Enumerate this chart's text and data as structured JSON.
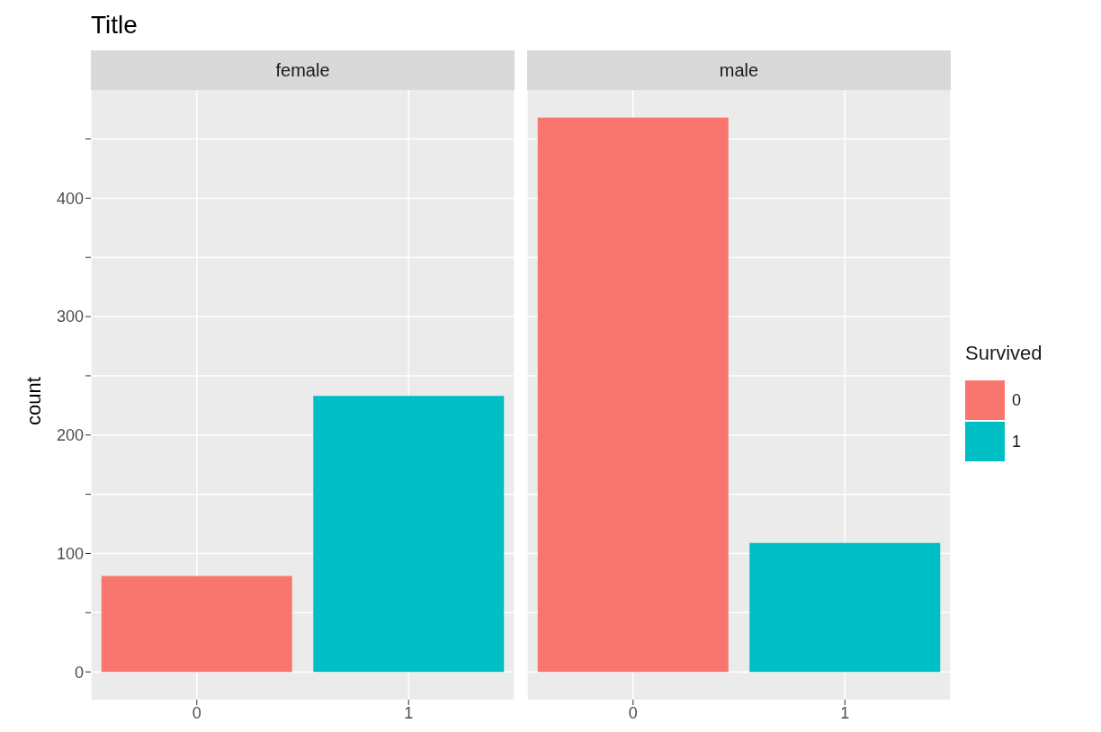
{
  "chart_data": [
    {
      "type": "bar",
      "title": "Title",
      "subtitle": "female",
      "ylabel": "count",
      "categories": [
        "0",
        "1"
      ],
      "stacked": true,
      "series": [
        {
          "color": "#f8766d",
          "values": [
            81,
            null
          ]
        },
        {
          "color": "#00bfc4",
          "values": [
            null,
            233
          ]
        }
      ],
      "ylim": [
        -23.4,
        491.4
      ],
      "yticks": [
        0,
        {
          "value": 50,
          "label": null
        },
        100,
        {
          "value": 150,
          "label": null
        },
        200,
        {
          "value": 250,
          "label": null
        },
        300,
        {
          "value": 350,
          "label": null
        },
        400,
        {
          "value": 450,
          "label": null
        }
      ],
      "grid": true,
      "legend": false
    },
    {
      "type": "bar",
      "subtitle": "male",
      "categories": [
        "0",
        "1"
      ],
      "stacked": true,
      "legend_title": "Survived",
      "legend": "right",
      "tick_labels": "x",
      "series": [
        {
          "name": "0",
          "color": "#f8766d",
          "values": [
            468,
            null
          ]
        },
        {
          "name": "1",
          "color": "#00bfc4",
          "values": [
            null,
            109
          ]
        }
      ],
      "ylim": [
        -23.4,
        491.4
      ],
      "yticks": [
        0,
        {
          "value": 50,
          "label": null
        },
        100,
        {
          "value": 150,
          "label": null
        },
        200,
        {
          "value": 250,
          "label": null
        },
        300,
        {
          "value": 350,
          "label": null
        },
        400,
        {
          "value": 450,
          "label": null
        }
      ],
      "grid": true
    }
  ]
}
